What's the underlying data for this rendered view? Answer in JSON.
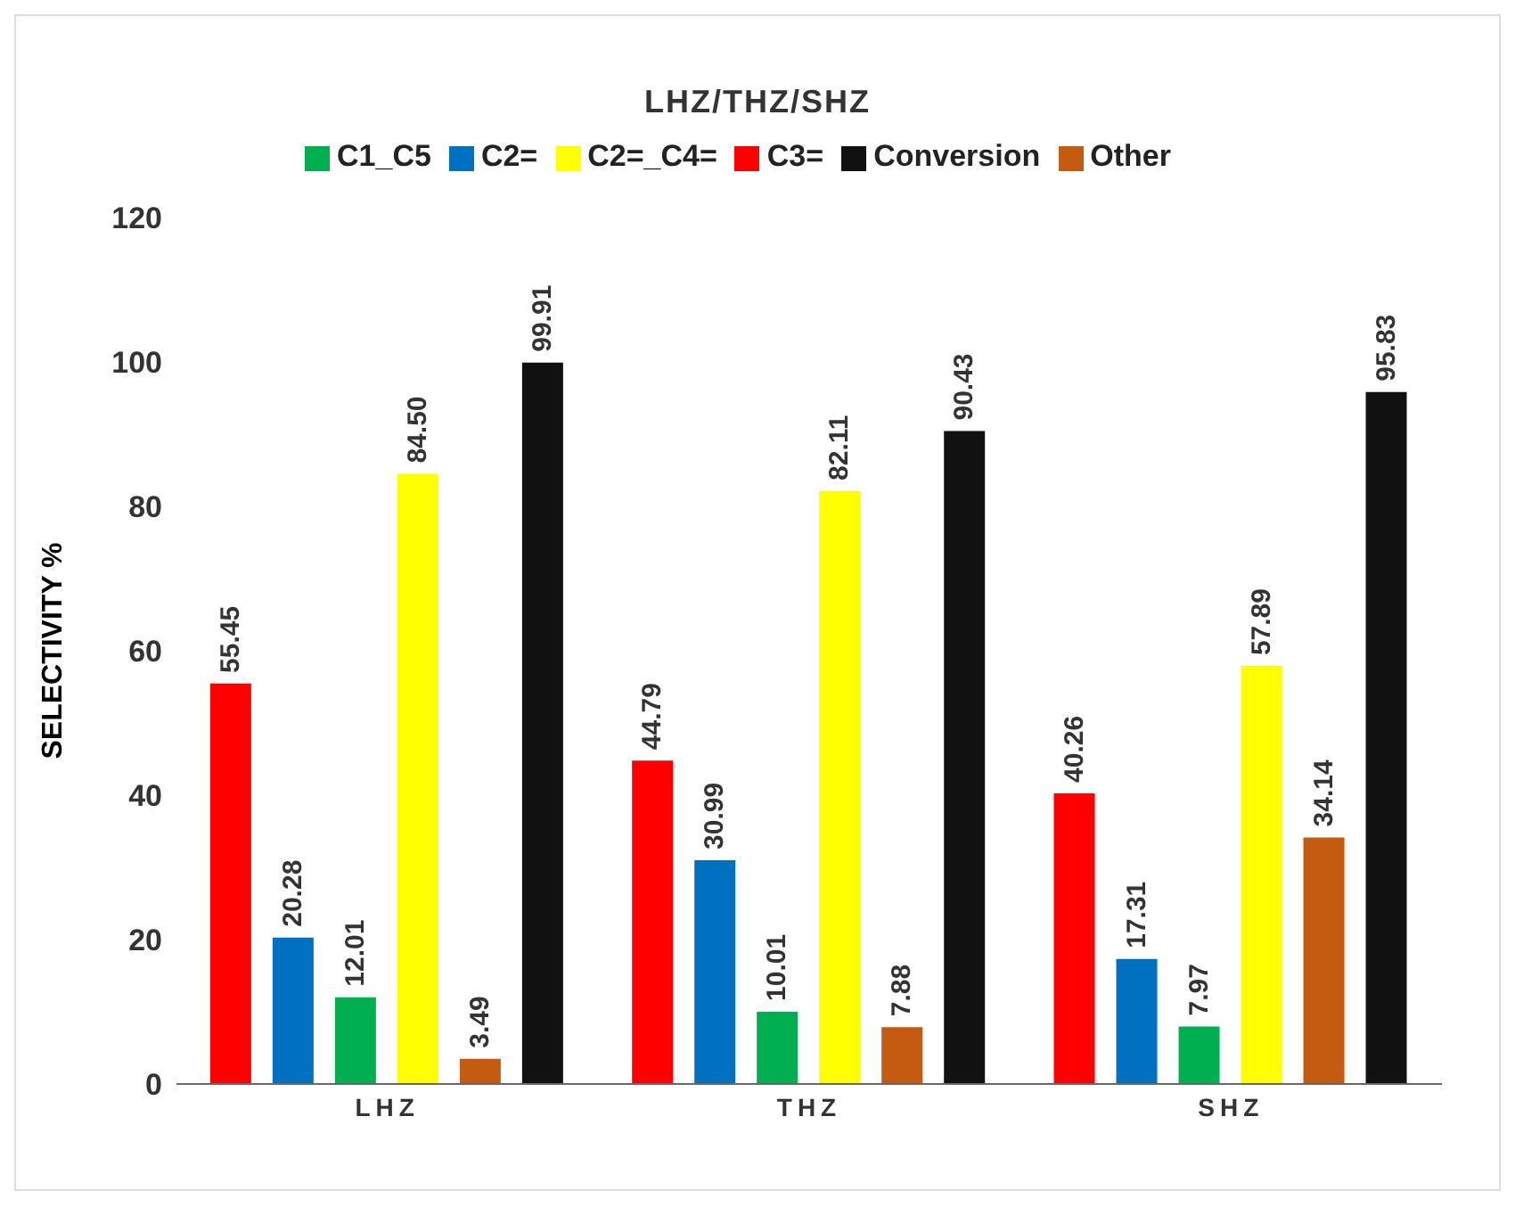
{
  "chart_data": {
    "type": "bar",
    "title": "LHZ/THZ/SHZ",
    "ylabel": "SELECTIVITY %",
    "categories": [
      "LHZ",
      "THZ",
      "SHZ"
    ],
    "series": [
      {
        "name": "C3=",
        "color": "#ff0000",
        "values": [
          55.45,
          44.79,
          40.26
        ],
        "value_labels": [
          "55.45",
          "44.79",
          "40.26"
        ]
      },
      {
        "name": "C2=",
        "color": "#0070c0",
        "values": [
          20.28,
          30.99,
          17.31
        ],
        "value_labels": [
          "20.28",
          "30.99",
          "17.31"
        ]
      },
      {
        "name": "C1_C5",
        "color": "#00b050",
        "values": [
          12.01,
          10.01,
          7.97
        ],
        "value_labels": [
          "12.01",
          "10.01",
          "7.97"
        ]
      },
      {
        "name": "C2=_C4=",
        "color": "#ffff00",
        "values": [
          84.5,
          82.11,
          57.89
        ],
        "value_labels": [
          "84.50",
          "82.11",
          "57.89"
        ]
      },
      {
        "name": "Other",
        "color": "#c55a11",
        "values": [
          3.49,
          7.88,
          34.14
        ],
        "value_labels": [
          "3.49",
          "7.88",
          "34.14"
        ]
      },
      {
        "name": "Conversion",
        "color": "#111111",
        "values": [
          99.91,
          90.43,
          95.83
        ],
        "value_labels": [
          "99.91",
          "90.43",
          "95.83"
        ]
      }
    ],
    "ylim": [
      0,
      120
    ],
    "yticks": [
      0,
      20,
      40,
      60,
      80,
      100,
      120
    ],
    "legend": "top",
    "grid": false
  }
}
